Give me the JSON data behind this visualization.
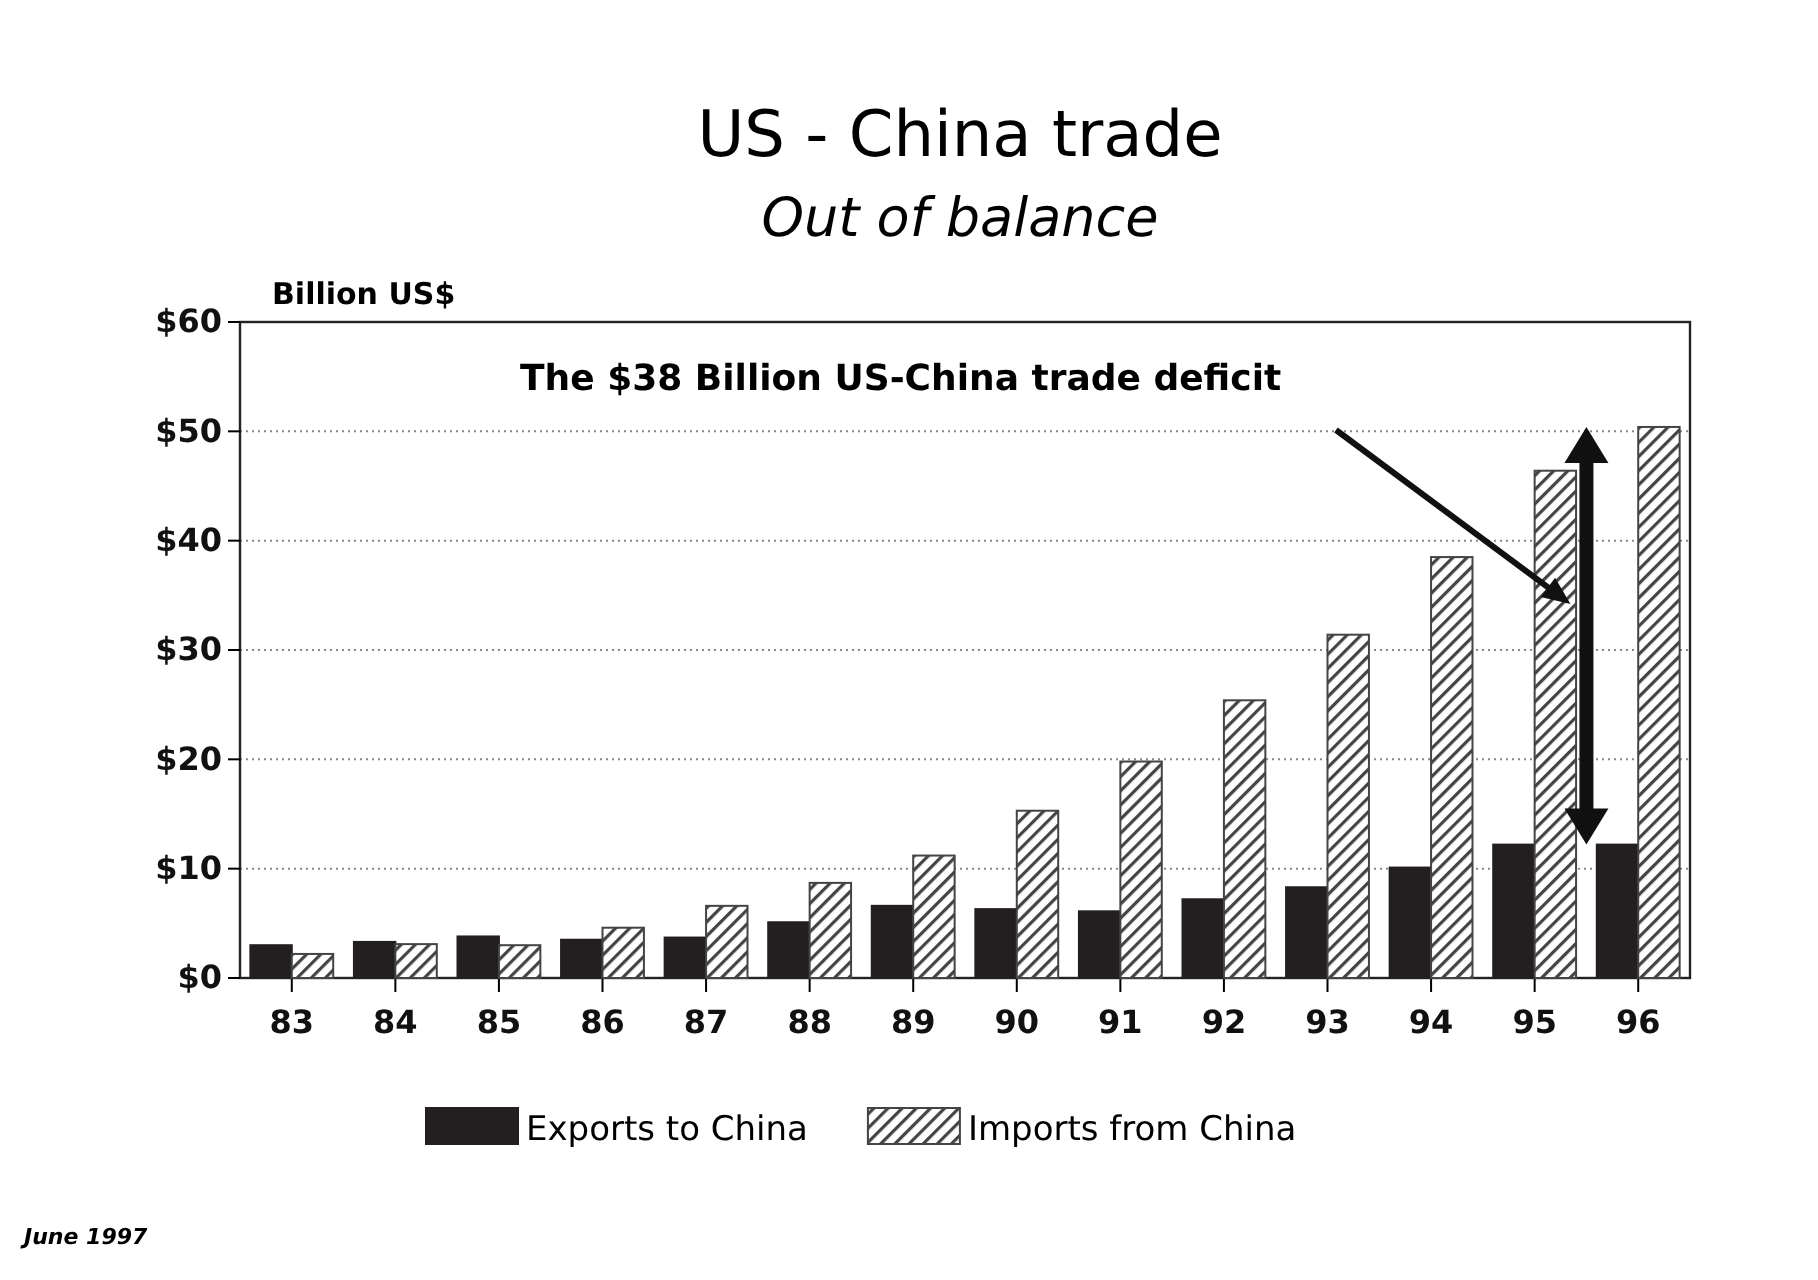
{
  "chart_data": {
    "type": "bar",
    "title": "US - China trade",
    "subtitle": "Out of balance",
    "ylabel": "Billion US$",
    "categories": [
      "83",
      "84",
      "85",
      "86",
      "87",
      "88",
      "89",
      "90",
      "91",
      "92",
      "93",
      "94",
      "95",
      "96"
    ],
    "series": [
      {
        "name": "Exports to China",
        "color": "#231f20",
        "values": [
          3.0,
          3.3,
          3.8,
          3.5,
          3.7,
          5.1,
          6.6,
          6.3,
          6.1,
          7.2,
          8.3,
          10.1,
          12.2,
          12.2
        ]
      },
      {
        "name": "Imports from China",
        "color": "#444444",
        "values": [
          2.2,
          3.1,
          3.0,
          4.6,
          6.6,
          8.7,
          11.2,
          15.3,
          19.8,
          25.4,
          31.4,
          38.5,
          46.4,
          50.4
        ]
      }
    ],
    "ylim": [
      0,
      60
    ],
    "yticks": [
      {
        "value": 0,
        "label": "$0"
      },
      {
        "value": 10,
        "label": "$10"
      },
      {
        "value": 20,
        "label": "$20"
      },
      {
        "value": 30,
        "label": "$30"
      },
      {
        "value": 40,
        "label": "$40"
      },
      {
        "value": 50,
        "label": "$50"
      },
      {
        "value": 60,
        "label": "$60"
      }
    ],
    "grid": "y",
    "legend": "bottom",
    "annotations": [
      "The $38 Billion US-China trade deficit",
      "June 1997"
    ]
  }
}
